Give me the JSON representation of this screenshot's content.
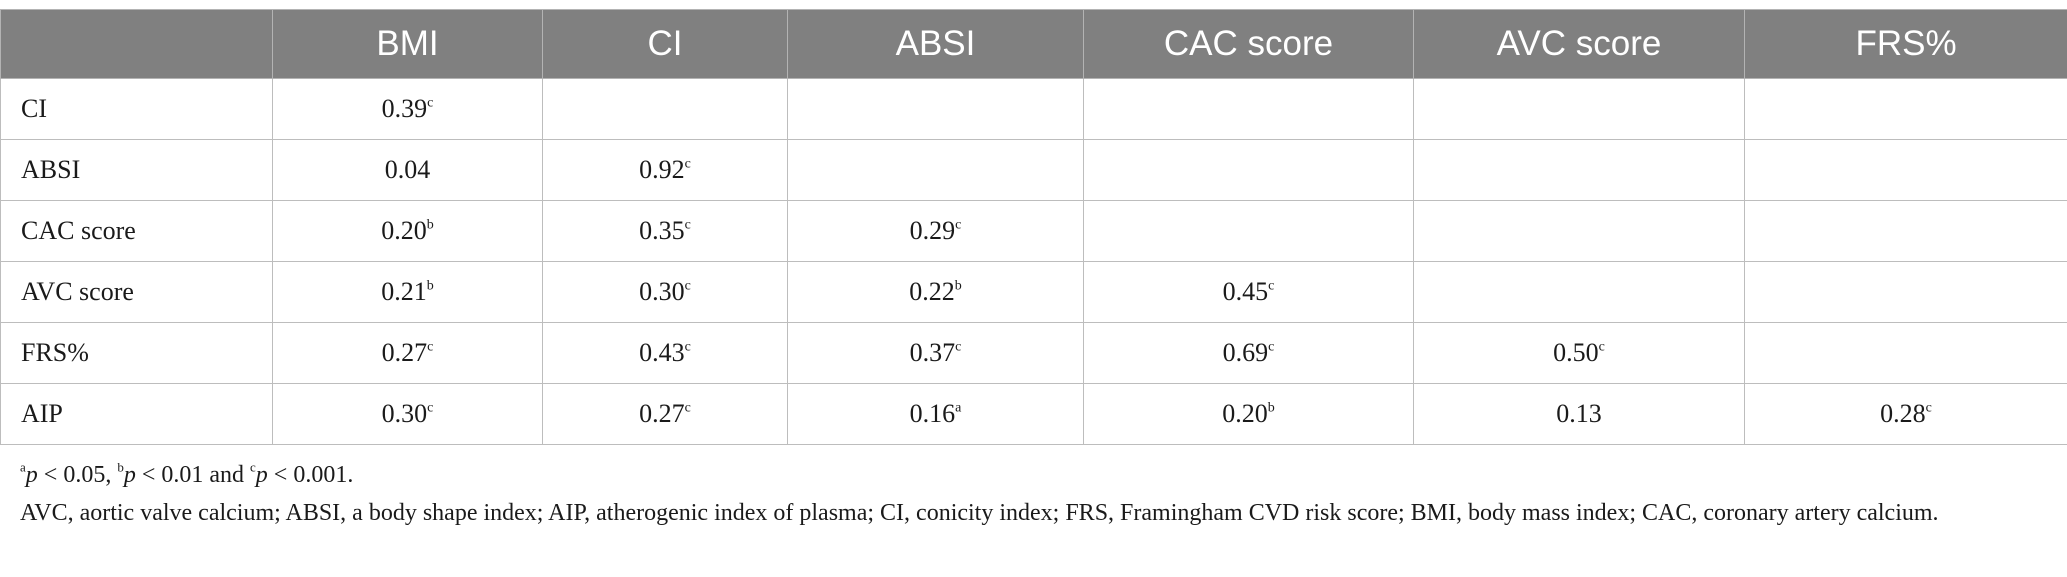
{
  "table": {
    "columns": [
      "",
      "BMI",
      "CI",
      "ABSI",
      "CAC score",
      "AVC score",
      "FRS%"
    ],
    "rows": [
      {
        "label": "CI",
        "cells": [
          {
            "value": "0.39",
            "sup": "c"
          },
          {
            "value": "",
            "sup": ""
          },
          {
            "value": "",
            "sup": ""
          },
          {
            "value": "",
            "sup": ""
          },
          {
            "value": "",
            "sup": ""
          },
          {
            "value": "",
            "sup": ""
          }
        ]
      },
      {
        "label": "ABSI",
        "cells": [
          {
            "value": "0.04",
            "sup": ""
          },
          {
            "value": "0.92",
            "sup": "c"
          },
          {
            "value": "",
            "sup": ""
          },
          {
            "value": "",
            "sup": ""
          },
          {
            "value": "",
            "sup": ""
          },
          {
            "value": "",
            "sup": ""
          }
        ]
      },
      {
        "label": "CAC score",
        "cells": [
          {
            "value": "0.20",
            "sup": "b"
          },
          {
            "value": "0.35",
            "sup": "c"
          },
          {
            "value": "0.29",
            "sup": "c"
          },
          {
            "value": "",
            "sup": ""
          },
          {
            "value": "",
            "sup": ""
          },
          {
            "value": "",
            "sup": ""
          }
        ]
      },
      {
        "label": "AVC score",
        "cells": [
          {
            "value": "0.21",
            "sup": "b"
          },
          {
            "value": "0.30",
            "sup": "c"
          },
          {
            "value": "0.22",
            "sup": "b"
          },
          {
            "value": "0.45",
            "sup": "c"
          },
          {
            "value": "",
            "sup": ""
          },
          {
            "value": "",
            "sup": ""
          }
        ]
      },
      {
        "label": "FRS%",
        "cells": [
          {
            "value": "0.27",
            "sup": "c"
          },
          {
            "value": "0.43",
            "sup": "c"
          },
          {
            "value": "0.37",
            "sup": "c"
          },
          {
            "value": "0.69",
            "sup": "c"
          },
          {
            "value": "0.50",
            "sup": "c"
          },
          {
            "value": "",
            "sup": ""
          }
        ]
      },
      {
        "label": "AIP",
        "cells": [
          {
            "value": "0.30",
            "sup": "c"
          },
          {
            "value": "0.27",
            "sup": "c"
          },
          {
            "value": "0.16",
            "sup": "a"
          },
          {
            "value": "0.20",
            "sup": "b"
          },
          {
            "value": "0.13",
            "sup": ""
          },
          {
            "value": "0.28",
            "sup": "c"
          }
        ]
      }
    ]
  },
  "footnotes": {
    "significance": [
      {
        "sup": "a",
        "var": "p",
        "text": " < 0.05, "
      },
      {
        "sup": "b",
        "var": "p",
        "text": " < 0.01 and "
      },
      {
        "sup": "c",
        "var": "p",
        "text": " < 0.001."
      }
    ],
    "abbreviations": "AVC, aortic valve calcium; ABSI, a body shape index; AIP, atherogenic index of plasma; CI, conicity index; FRS, Framingham CVD risk score; BMI, body mass index; CAC, coronary artery calcium."
  },
  "colors": {
    "header_bg": "#808080",
    "header_text": "#ffffff",
    "grid": "#bdbdbd"
  }
}
